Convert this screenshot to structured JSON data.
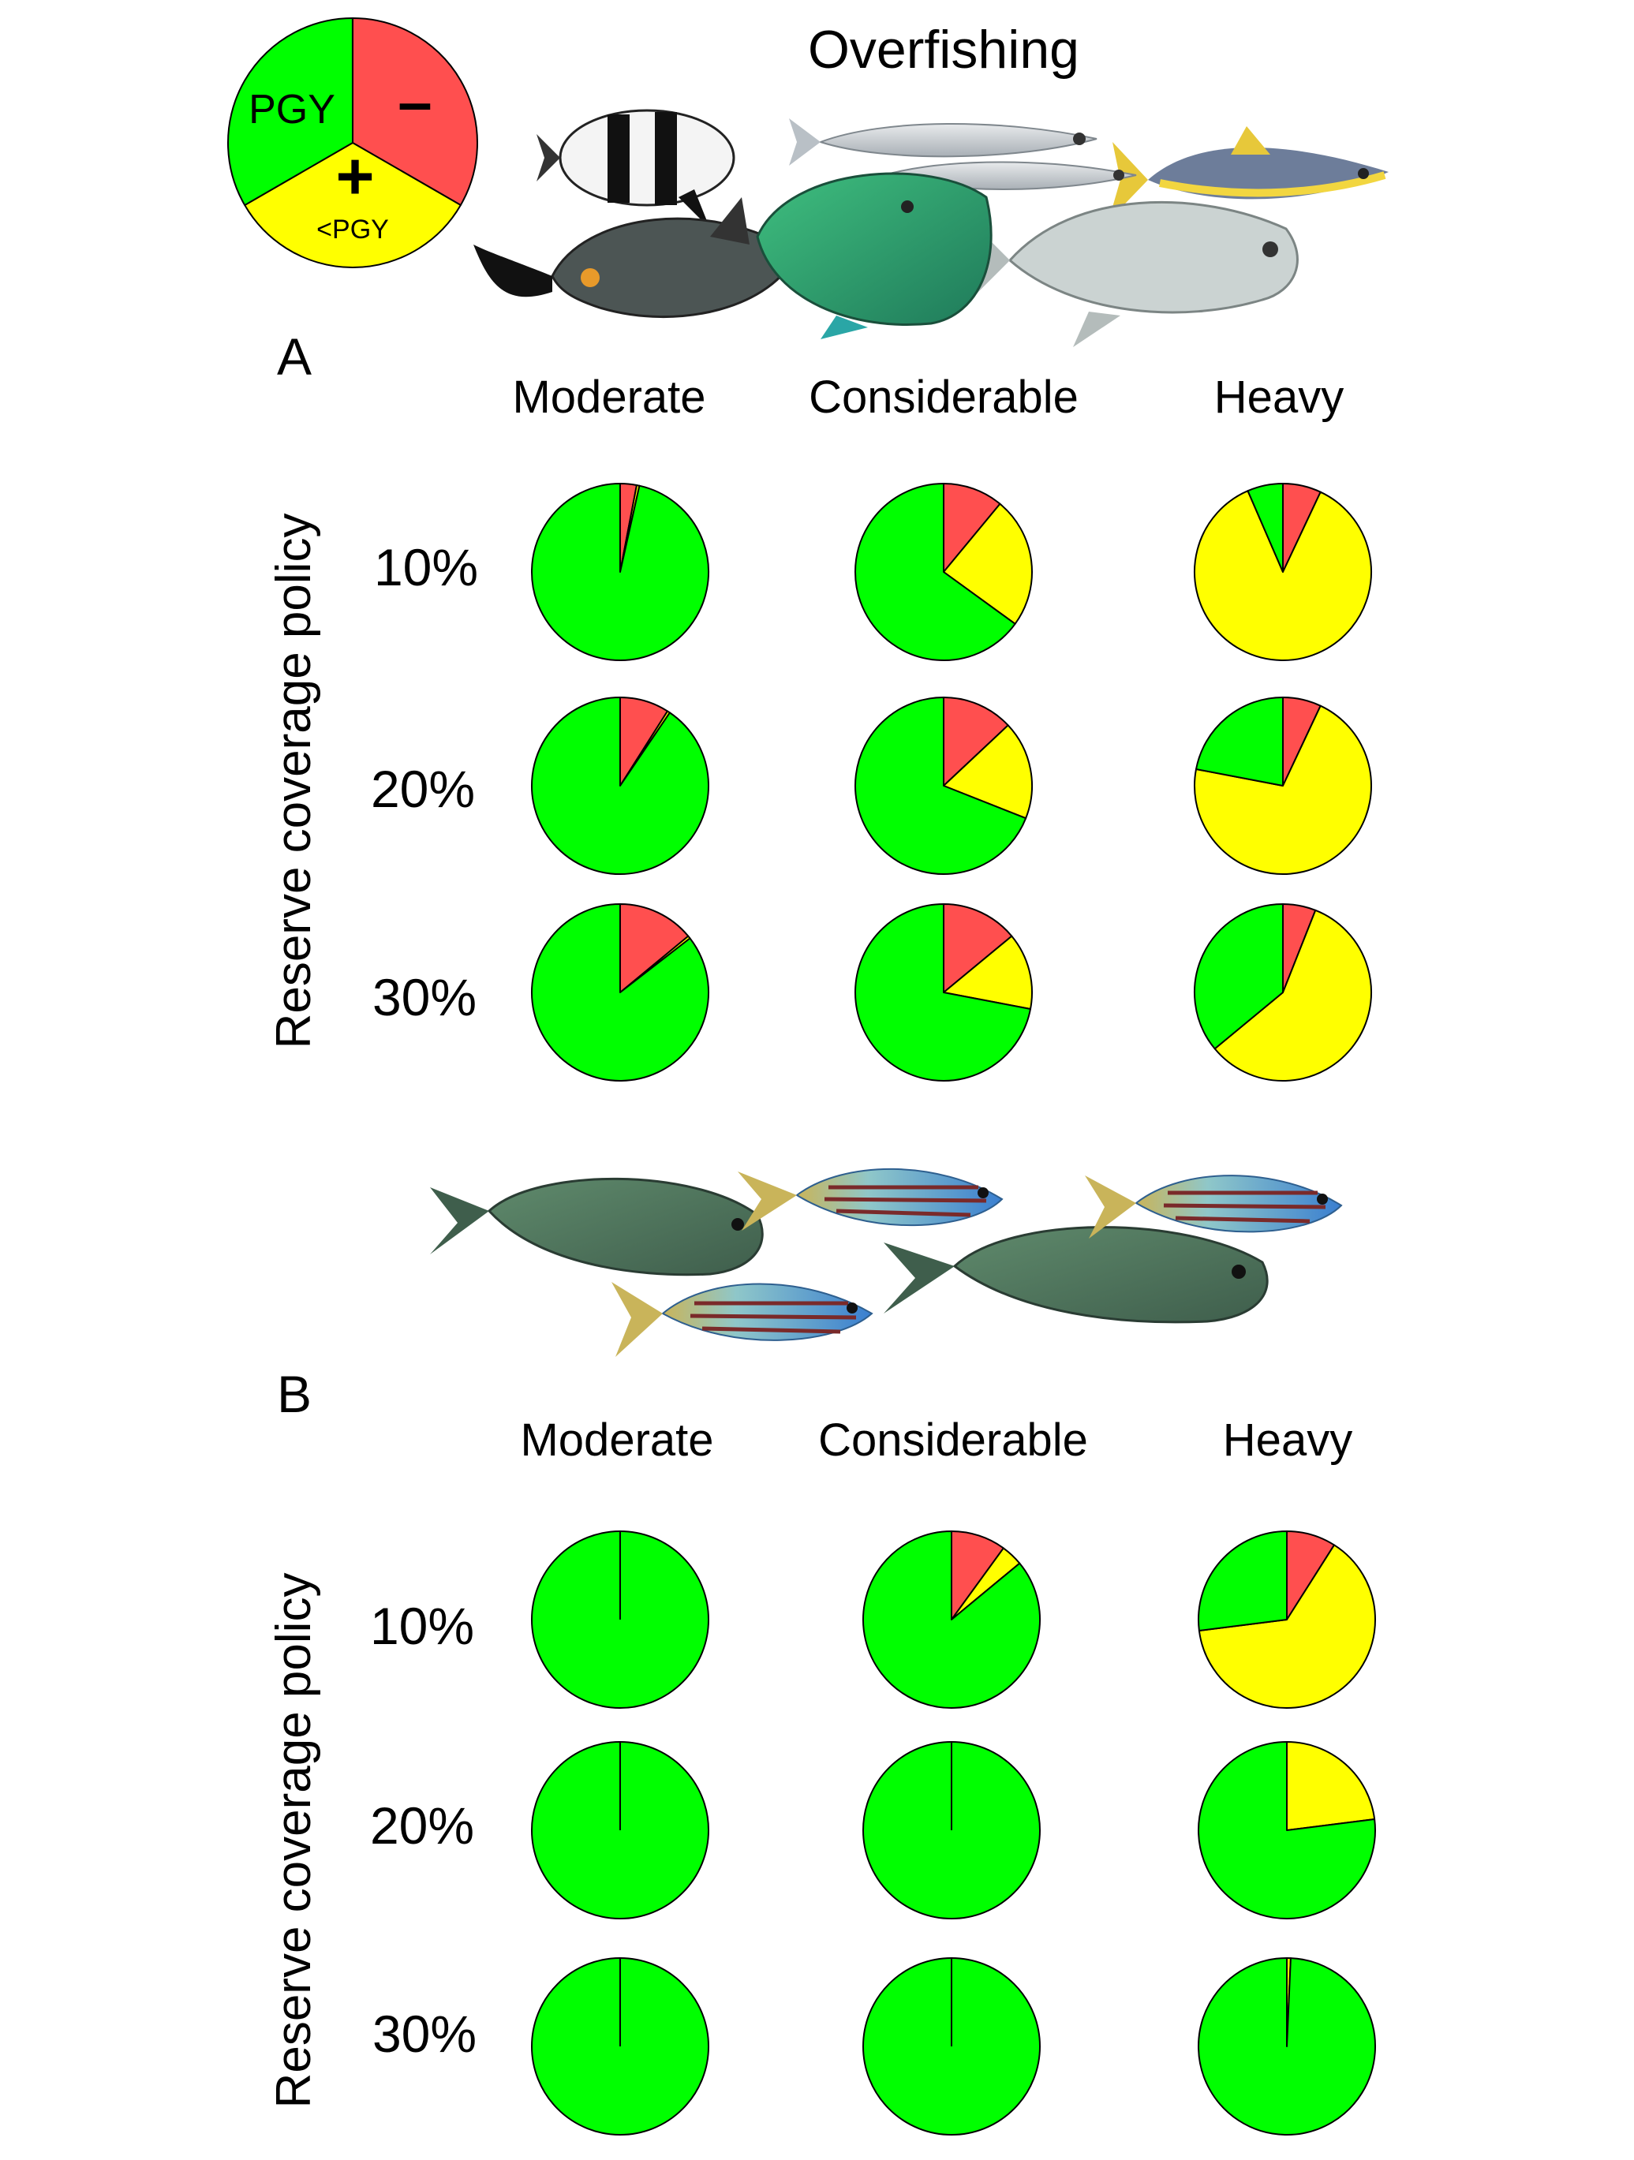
{
  "title": "Overfishing",
  "legend": {
    "top_label": "PGY",
    "right_symbol": "–",
    "bottom_symbol": "+",
    "bottom_label": "<PGY",
    "colors": {
      "green": "#00ff00",
      "red": "#ff4f4f",
      "yellow": "#ffff00"
    },
    "fractions": {
      "green": 0.3333,
      "red": 0.3333,
      "yellow": 0.3333
    }
  },
  "axis_label": "Reserve coverage policy",
  "column_labels": [
    "Moderate",
    "Considerable",
    "Heavy"
  ],
  "row_labels": [
    "10%",
    "20%",
    "30%"
  ],
  "chart_data": [
    {
      "type": "pie",
      "panel": "A",
      "slice_order": [
        "red",
        "yellow",
        "green"
      ],
      "cells": [
        [
          {
            "red": 0.03,
            "yellow": 0.005,
            "green": 0.965
          },
          {
            "red": 0.11,
            "yellow": 0.24,
            "green": 0.65
          },
          {
            "red": 0.07,
            "yellow": 0.865,
            "green": 0.065
          }
        ],
        [
          {
            "red": 0.09,
            "yellow": 0.005,
            "green": 0.905
          },
          {
            "red": 0.13,
            "yellow": 0.18,
            "green": 0.69
          },
          {
            "red": 0.07,
            "yellow": 0.71,
            "green": 0.22
          }
        ],
        [
          {
            "red": 0.14,
            "yellow": 0.005,
            "green": 0.855
          },
          {
            "red": 0.14,
            "yellow": 0.14,
            "green": 0.72
          },
          {
            "red": 0.06,
            "yellow": 0.58,
            "green": 0.36
          }
        ]
      ]
    },
    {
      "type": "pie",
      "panel": "B",
      "slice_order": [
        "red",
        "yellow",
        "green"
      ],
      "cells": [
        [
          {
            "red": 0,
            "yellow": 0,
            "green": 1
          },
          {
            "red": 0.1,
            "yellow": 0.04,
            "green": 0.86
          },
          {
            "red": 0.09,
            "yellow": 0.64,
            "green": 0.27
          }
        ],
        [
          {
            "red": 0,
            "yellow": 0,
            "green": 1
          },
          {
            "red": 0,
            "yellow": 0,
            "green": 1
          },
          {
            "red": 0,
            "yellow": 0.23,
            "green": 0.77
          }
        ],
        [
          {
            "red": 0,
            "yellow": 0,
            "green": 1
          },
          {
            "red": 0,
            "yellow": 0,
            "green": 1
          },
          {
            "red": 0,
            "yellow": 0.007,
            "green": 0.993
          }
        ]
      ]
    }
  ]
}
